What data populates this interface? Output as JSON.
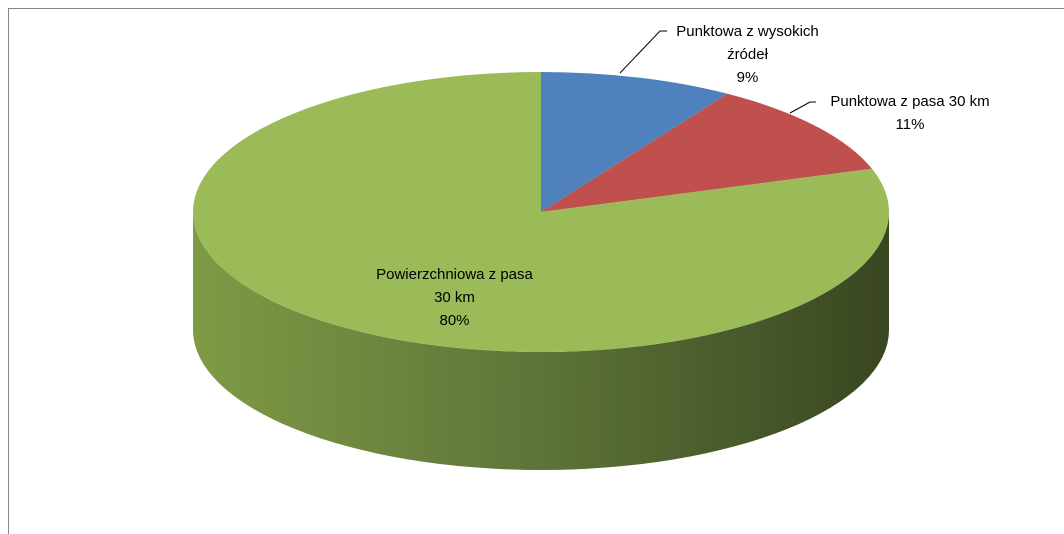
{
  "chart_data": {
    "type": "pie3d",
    "categories": [
      "Punktowa z wysokich źródeł",
      "Punktowa z pasa 30 km",
      "Powierzchniowa z pasa 30 km"
    ],
    "values": [
      9,
      11,
      80
    ],
    "value_labels": [
      "9%",
      "11%",
      "80%"
    ],
    "colors": [
      "#4f81bd",
      "#c0504d",
      "#9bbb59"
    ]
  }
}
